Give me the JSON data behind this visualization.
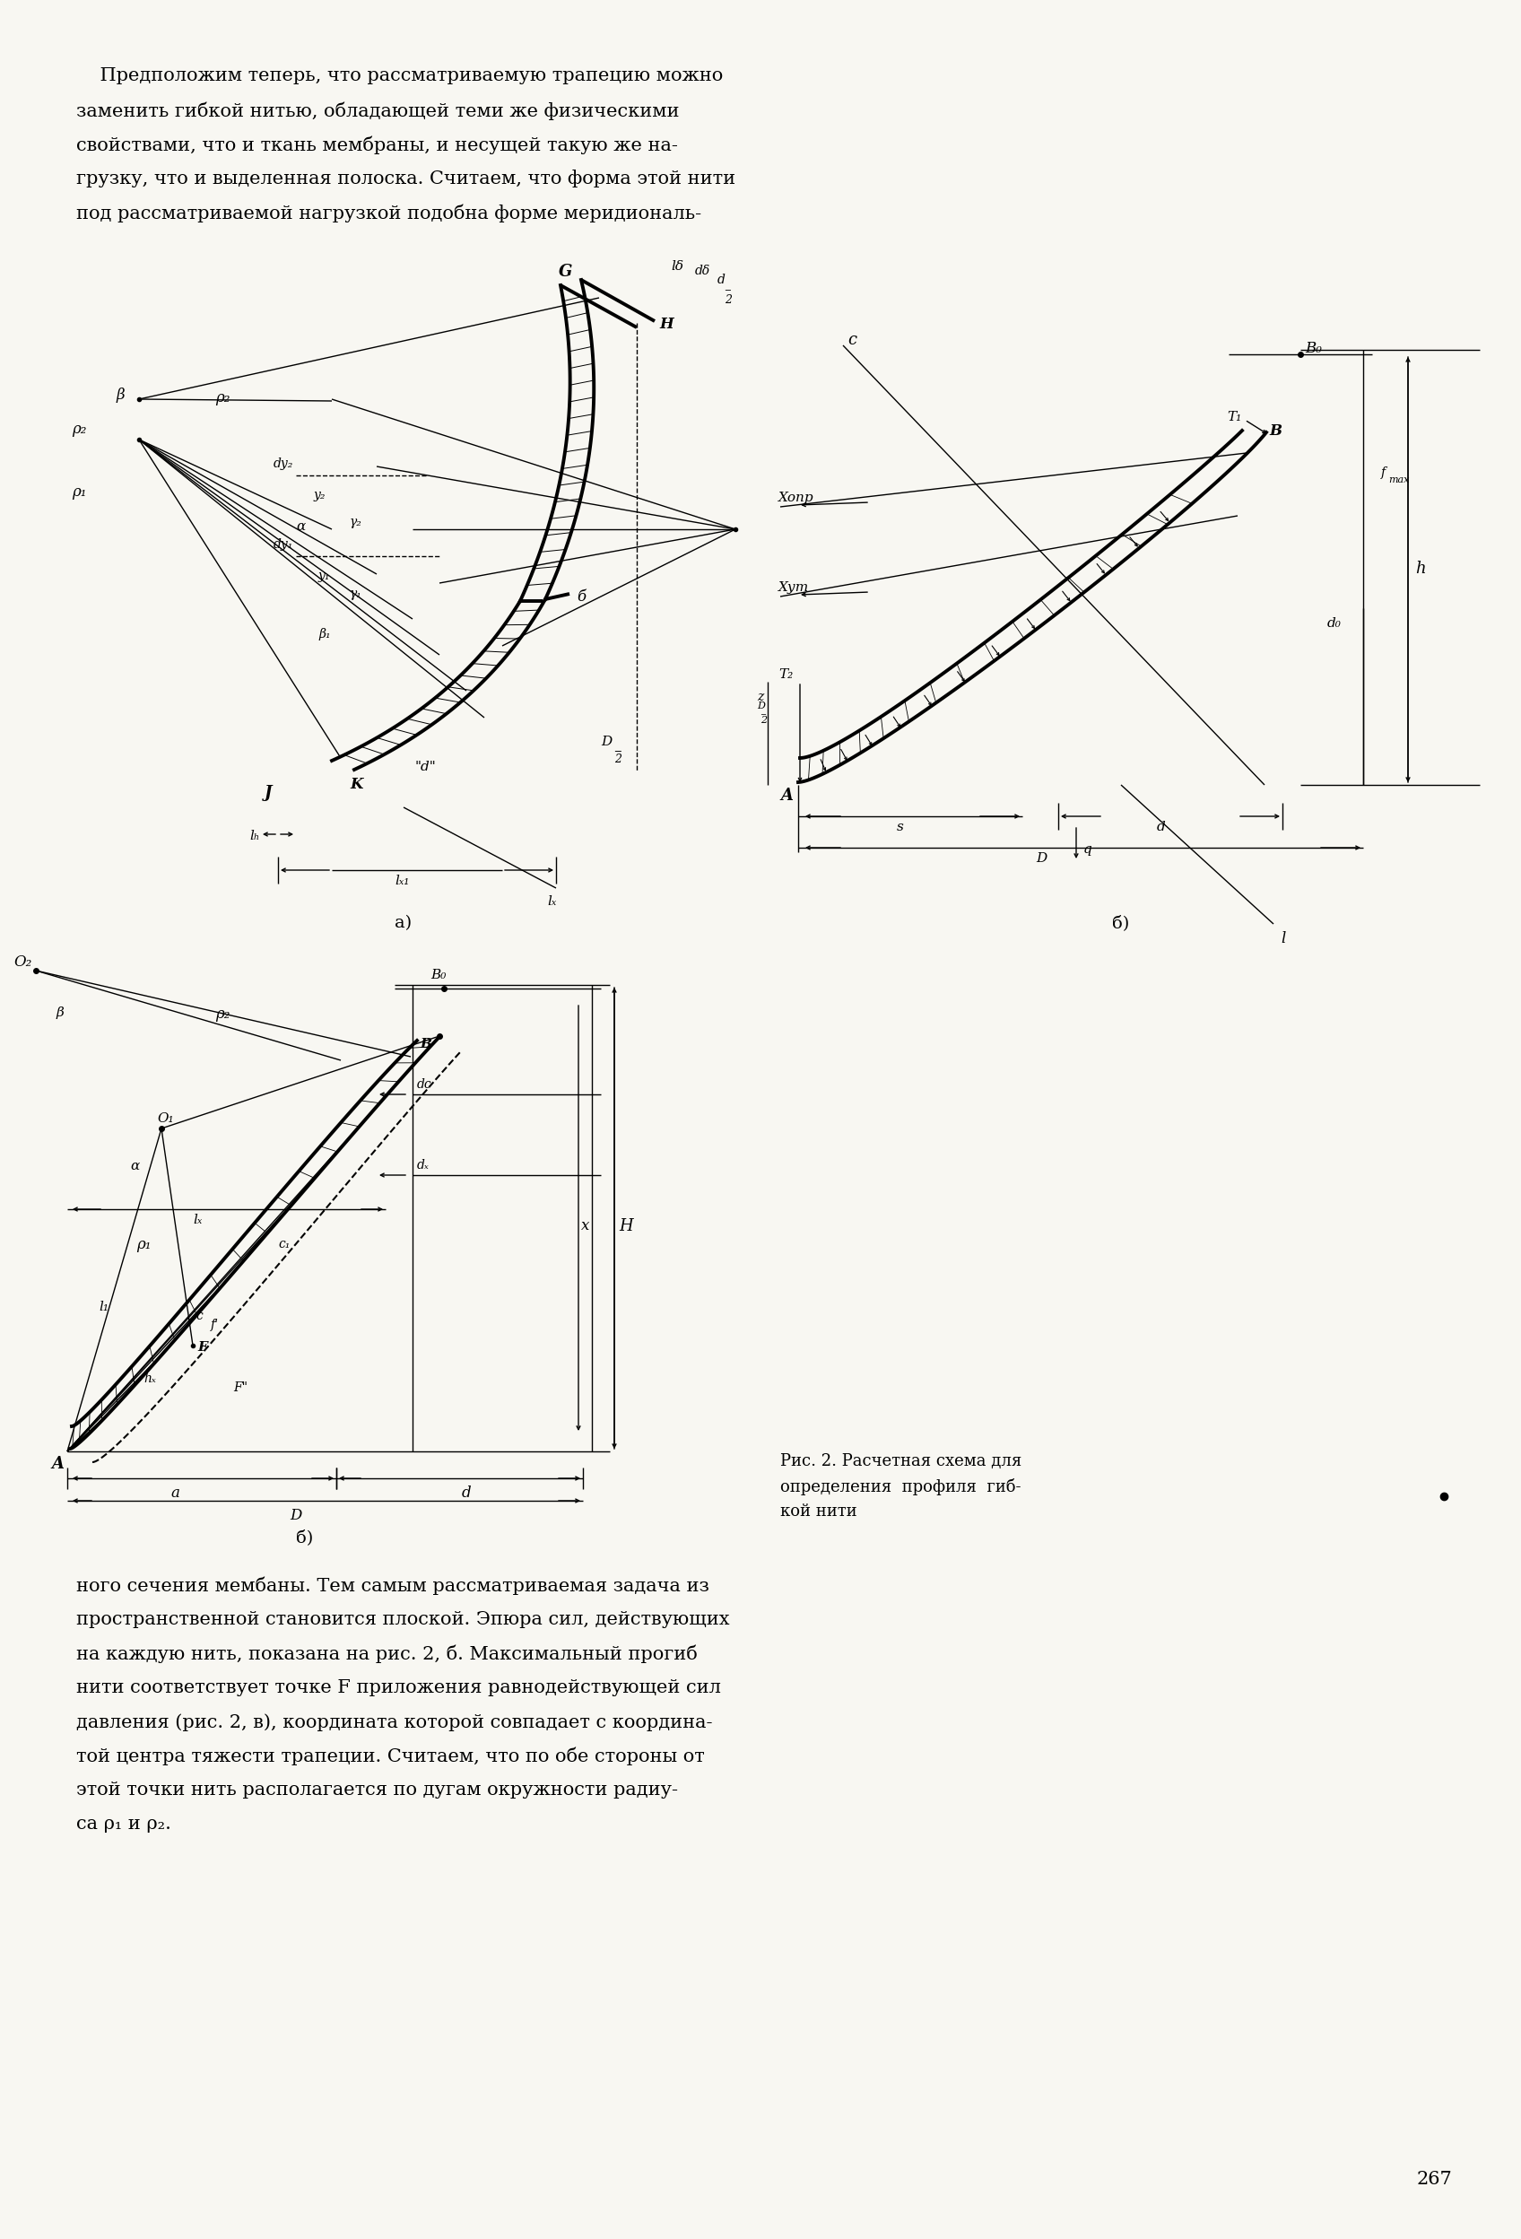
{
  "page_bg": "#f8f7f2",
  "para1_lines": [
    "    Предположим теперь, что рассматриваемую трапецию можно",
    "заменить гибкой нитью, обладающей теми же физическими",
    "свойствами, что и ткань мембраны, и несущей такую же на-",
    "грузку, что и выделенная полоска. Считаем, что форма этой нити",
    "под рассматриваемой нагрузкой подобна форме меридиональ-"
  ],
  "para2_lines": [
    "ного сечения мембаны. Тем самым рассматриваемая задача из",
    "пространственной становится плоской. Эпюра сил, действующих",
    "на каждую нить, показана на рис. 2, б. Максимальный прогиб",
    "нити соответствует точке F приложения равнодействующей сил",
    "давления (рис. 2, в), координата которой совпадает с координа-",
    "той центра тяжести трапеции. Считаем, что по обе стороны от",
    "этой точки нить располагается по дугам окружности радиу-",
    "са ρ₁ и ρ₂."
  ],
  "fig_caption_line1": "Рис. 2. Расчетная схема для",
  "fig_caption_line2": "определения  профиля  гиб-",
  "fig_caption_line3": "кой нити",
  "page_num": "267"
}
